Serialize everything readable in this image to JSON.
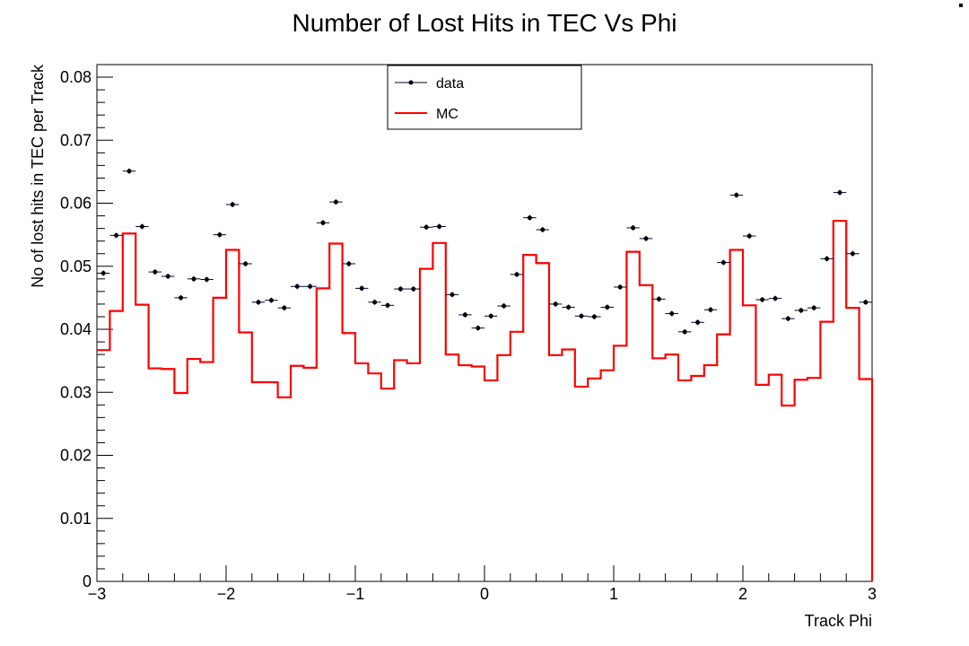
{
  "chart_data": {
    "type": "histogram",
    "title": "Number of Lost Hits in TEC Vs Phi",
    "xlabel": "Track Phi",
    "ylabel": "No of lost hits in TEC per Track",
    "xlim": [
      -3,
      3
    ],
    "ylim": [
      0,
      0.082
    ],
    "grid": false,
    "legend_position": "top-center",
    "x_ticks": [
      {
        "value": -3,
        "label": "−3"
      },
      {
        "value": -2,
        "label": "−2"
      },
      {
        "value": -1,
        "label": "−1"
      },
      {
        "value": 0,
        "label": "0"
      },
      {
        "value": 1,
        "label": "1"
      },
      {
        "value": 2,
        "label": "2"
      },
      {
        "value": 3,
        "label": "3"
      }
    ],
    "y_ticks": [
      {
        "value": 0,
        "label": "0"
      },
      {
        "value": 0.01,
        "label": "0.01"
      },
      {
        "value": 0.02,
        "label": "0.02"
      },
      {
        "value": 0.03,
        "label": "0.03"
      },
      {
        "value": 0.04,
        "label": "0.04"
      },
      {
        "value": 0.05,
        "label": "0.05"
      },
      {
        "value": 0.06,
        "label": "0.06"
      },
      {
        "value": 0.07,
        "label": "0.07"
      },
      {
        "value": 0.08,
        "label": "0.08"
      }
    ],
    "bin_edges_start": -3,
    "bin_width": 0.1,
    "series": [
      {
        "name": "data",
        "style": "points",
        "color": "#000033",
        "values": [
          0.0489,
          0.0549,
          0.0651,
          0.0563,
          0.0491,
          0.0484,
          0.045,
          0.048,
          0.0479,
          0.055,
          0.0598,
          0.0504,
          0.0443,
          0.0446,
          0.0434,
          0.0468,
          0.0468,
          0.0569,
          0.0602,
          0.0504,
          0.0465,
          0.0443,
          0.0438,
          0.0464,
          0.0464,
          0.0562,
          0.0563,
          0.0455,
          0.0423,
          0.0402,
          0.0421,
          0.0437,
          0.0487,
          0.0577,
          0.0558,
          0.044,
          0.0435,
          0.0421,
          0.042,
          0.0435,
          0.0467,
          0.0561,
          0.0544,
          0.0448,
          0.0425,
          0.0396,
          0.0411,
          0.0431,
          0.0506,
          0.0613,
          0.0548,
          0.0447,
          0.0449,
          0.0417,
          0.043,
          0.0434,
          0.0512,
          0.0617,
          0.052,
          0.0443
        ]
      },
      {
        "name": "MC",
        "style": "step",
        "color": "#ff0000",
        "values": [
          0.0367,
          0.0429,
          0.0552,
          0.0439,
          0.0338,
          0.0337,
          0.0299,
          0.0353,
          0.0348,
          0.045,
          0.0526,
          0.0395,
          0.0316,
          0.0316,
          0.0292,
          0.0342,
          0.0339,
          0.0465,
          0.0536,
          0.0394,
          0.0346,
          0.033,
          0.0306,
          0.0351,
          0.0346,
          0.0496,
          0.0537,
          0.036,
          0.0343,
          0.0341,
          0.0319,
          0.0359,
          0.0396,
          0.0518,
          0.0505,
          0.0359,
          0.0368,
          0.0309,
          0.0322,
          0.0335,
          0.0374,
          0.0523,
          0.047,
          0.0354,
          0.036,
          0.0319,
          0.0326,
          0.0343,
          0.0392,
          0.0526,
          0.0438,
          0.0312,
          0.0328,
          0.0279,
          0.032,
          0.0323,
          0.0412,
          0.0572,
          0.0434,
          0.0321
        ]
      }
    ]
  }
}
